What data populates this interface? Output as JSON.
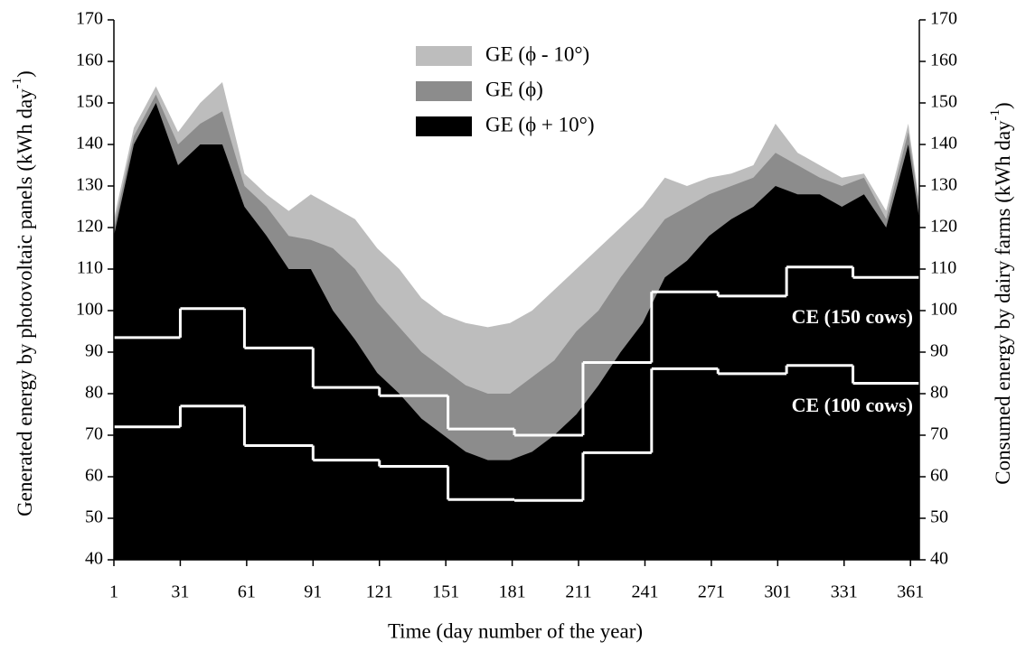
{
  "chart_data": {
    "type": "area",
    "x_label": "Time (day number of the year)",
    "y_label": {
      "text": "Generated energy by photovoltaic panels (kWh day",
      "sup": "-1",
      "close": ")"
    },
    "y2_label": {
      "text": "Consumed energy by dairy farms (kWh day",
      "sup": "-1",
      "close": ")"
    },
    "xlim": [
      1,
      365
    ],
    "xticks": [
      1,
      31,
      61,
      91,
      121,
      151,
      181,
      211,
      241,
      271,
      301,
      331,
      361
    ],
    "ylim": [
      40,
      170
    ],
    "yticks": [
      40,
      50,
      60,
      70,
      80,
      90,
      100,
      110,
      120,
      130,
      140,
      150,
      160,
      170
    ],
    "y2lim": [
      40,
      170
    ],
    "y2ticks": [
      40,
      50,
      60,
      70,
      80,
      90,
      100,
      110,
      120,
      130,
      140,
      150,
      160,
      170
    ],
    "legend": "top",
    "x": [
      1,
      10,
      20,
      30,
      40,
      50,
      60,
      70,
      80,
      90,
      100,
      110,
      120,
      130,
      140,
      150,
      160,
      170,
      180,
      190,
      200,
      210,
      220,
      230,
      240,
      250,
      260,
      270,
      280,
      290,
      300,
      310,
      320,
      330,
      340,
      350,
      360,
      365
    ],
    "series": [
      {
        "name": "GE (ϕ - 10°)",
        "color": "#bdbdbd",
        "values": [
          122,
          144,
          154,
          143,
          150,
          155,
          133,
          128,
          124,
          128,
          125,
          122,
          115,
          110,
          103,
          99,
          97,
          96,
          97,
          100,
          105,
          110,
          115,
          120,
          125,
          132,
          130,
          132,
          133,
          135,
          145,
          138,
          135,
          132,
          133,
          124,
          145,
          126
        ]
      },
      {
        "name": "GE (ϕ)",
        "color": "#8c8c8c",
        "values": [
          120,
          142,
          152,
          140,
          145,
          148,
          130,
          125,
          118,
          117,
          115,
          110,
          102,
          96,
          90,
          86,
          82,
          80,
          80,
          84,
          88,
          95,
          100,
          108,
          115,
          122,
          125,
          128,
          130,
          132,
          138,
          135,
          132,
          130,
          132,
          122,
          143,
          125
        ]
      },
      {
        "name": "GE (ϕ + 10°)",
        "color": "#000000",
        "values": [
          118,
          140,
          150,
          135,
          140,
          140,
          125,
          118,
          110,
          110,
          100,
          93,
          85,
          80,
          74,
          70,
          66,
          64,
          64,
          66,
          70,
          75,
          82,
          90,
          97,
          108,
          112,
          118,
          122,
          125,
          130,
          128,
          128,
          125,
          128,
          120,
          140,
          122
        ]
      }
    ],
    "step_series": [
      {
        "name": "CE (150 cows)",
        "color": "#ffffff",
        "axis": "y2",
        "edges": [
          1,
          31,
          60,
          91,
          121,
          152,
          182,
          213,
          244,
          274,
          305,
          335,
          365
        ],
        "values": [
          93.5,
          100.5,
          91,
          81.5,
          79.5,
          71.5,
          70,
          87.5,
          104.5,
          103.5,
          110.5,
          108
        ]
      },
      {
        "name": "CE (100 cows)",
        "color": "#ffffff",
        "axis": "y2",
        "edges": [
          1,
          31,
          60,
          91,
          121,
          152,
          182,
          213,
          244,
          274,
          305,
          335,
          365
        ],
        "values": [
          72,
          77,
          67.5,
          64,
          62.5,
          54.5,
          54.3,
          65.8,
          86,
          84.8,
          86.8,
          82.5
        ]
      }
    ]
  }
}
